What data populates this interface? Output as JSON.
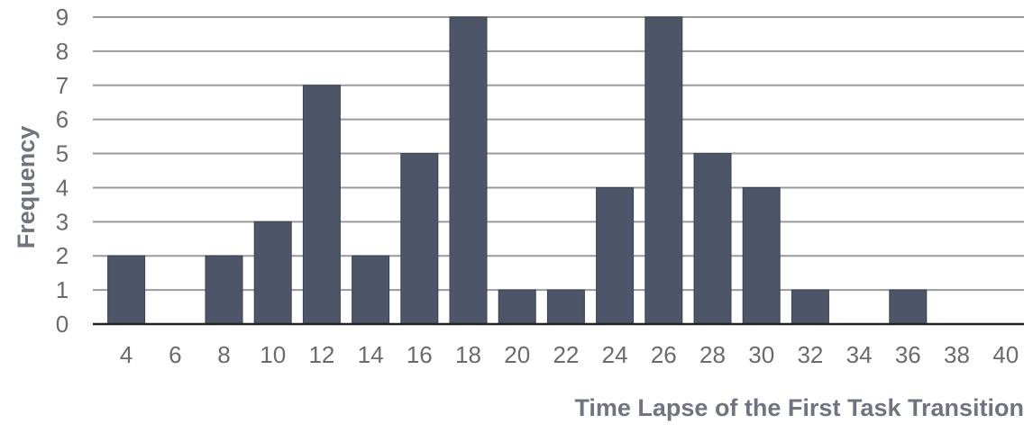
{
  "chart_data": {
    "type": "bar",
    "title": "",
    "xlabel": "Time Lapse of the First Task Transition",
    "ylabel": "Frequency",
    "categories": [
      "4",
      "6",
      "8",
      "10",
      "12",
      "14",
      "16",
      "18",
      "20",
      "22",
      "24",
      "26",
      "28",
      "30",
      "32",
      "34",
      "36",
      "38",
      "40"
    ],
    "values": [
      2,
      0,
      2,
      3,
      7,
      2,
      5,
      9,
      1,
      1,
      4,
      9,
      5,
      4,
      1,
      0,
      1,
      0,
      0
    ],
    "ylim": [
      0,
      9
    ],
    "yticks": [
      "0",
      "1",
      "2",
      "3",
      "4",
      "5",
      "6",
      "7",
      "8",
      "9"
    ],
    "grid": true,
    "colors": {
      "bar": "#4d5569",
      "bar_edge": "#3a4152",
      "grid": "#9a9a9a",
      "axis": "#222222",
      "tick_label": "#6b6b6b",
      "axis_title": "#6f7480"
    }
  }
}
